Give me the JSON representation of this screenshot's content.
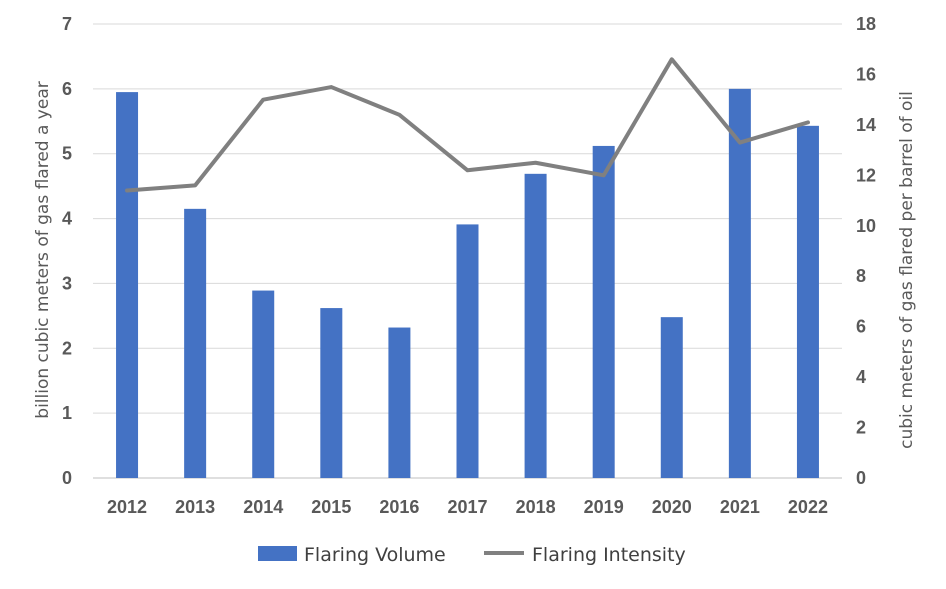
{
  "chart_data": {
    "type": "bar",
    "categories": [
      "2012",
      "2013",
      "2014",
      "2015",
      "2016",
      "2017",
      "2018",
      "2019",
      "2020",
      "2021",
      "2022"
    ],
    "series": [
      {
        "name": "Flaring Volume",
        "type": "bar",
        "axis": "left",
        "color": "#4472C4",
        "values": [
          5.95,
          4.15,
          2.89,
          2.62,
          2.32,
          3.91,
          4.69,
          5.12,
          2.48,
          6.0,
          5.43
        ]
      },
      {
        "name": "Flaring Intensity",
        "type": "line",
        "axis": "right",
        "color": "#808080",
        "values": [
          11.4,
          11.6,
          15.0,
          15.5,
          14.4,
          12.2,
          12.5,
          12.0,
          16.6,
          13.3,
          14.1
        ]
      }
    ],
    "ylabel": "billion cubic meters of gas flared a year",
    "y2label": "cubic meters of gas flared per barrel of oil",
    "ylim": [
      0,
      7
    ],
    "y2lim": [
      0,
      18
    ],
    "yticks": [
      "0",
      "1",
      "2",
      "3",
      "4",
      "5",
      "6",
      "7"
    ],
    "y2ticks": [
      "0",
      "2",
      "4",
      "6",
      "8",
      "10",
      "12",
      "14",
      "16",
      "18"
    ],
    "grid": true,
    "legend": "bottom"
  }
}
